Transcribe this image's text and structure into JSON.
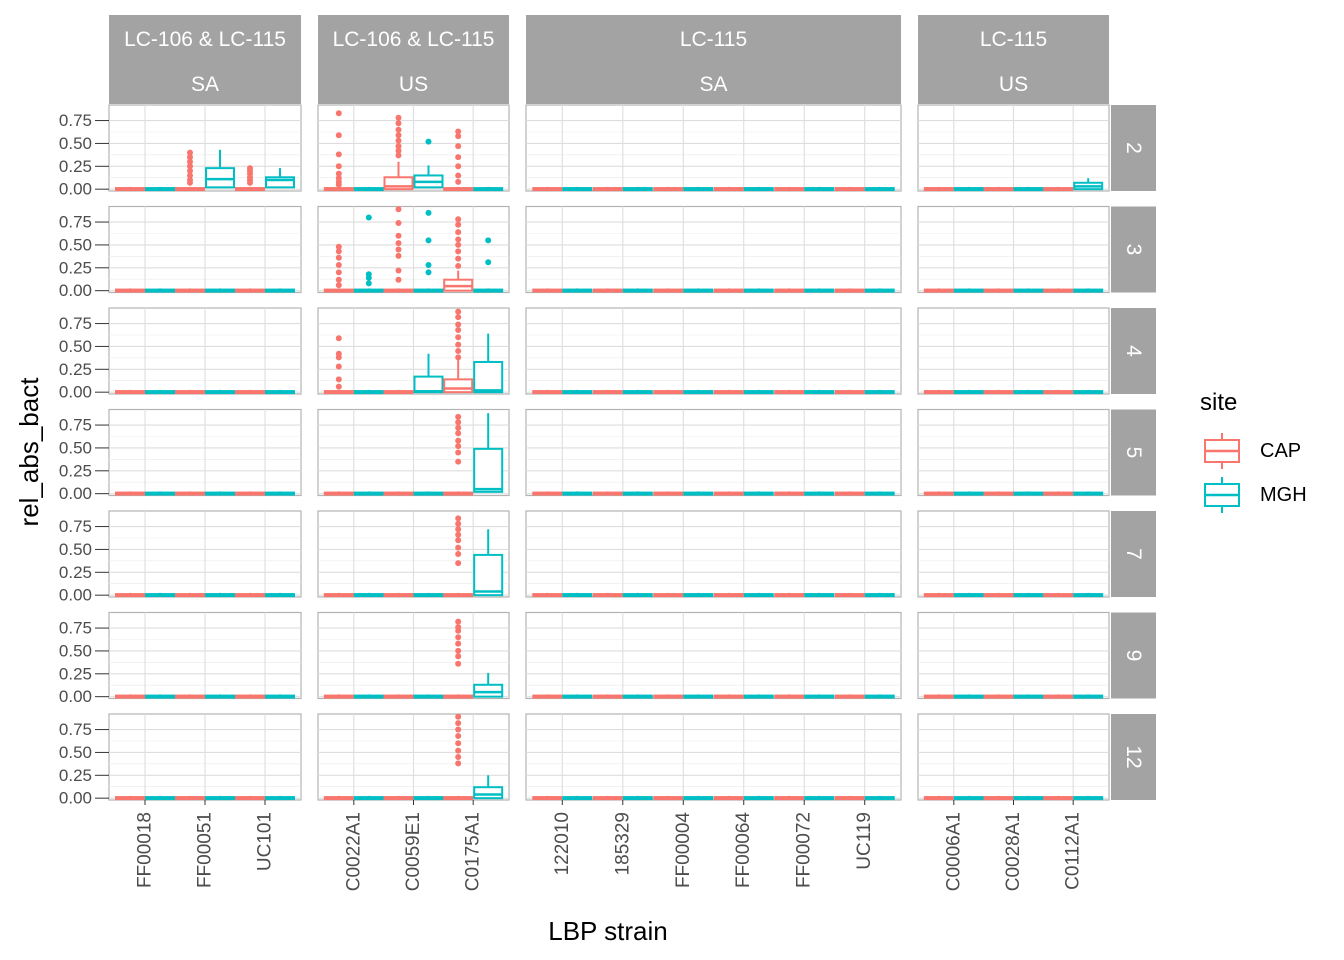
{
  "chart_data": {
    "type": "boxplot",
    "xlabel": "LBP strain",
    "ylabel": "rel_abs_bact",
    "yticks": [
      "0.00",
      "0.25",
      "0.50",
      "0.75"
    ],
    "ylim": [
      -0.02,
      0.92
    ],
    "legend": {
      "title": "site",
      "position": "right",
      "entries": [
        {
          "name": "CAP",
          "color": "#F8766D"
        },
        {
          "name": "MGH",
          "color": "#00BFC4"
        }
      ]
    },
    "column_facets": [
      {
        "label1": "LC-106 & LC-115",
        "label2": "SA",
        "strains": [
          "FF00018",
          "FF00051",
          "UC101"
        ]
      },
      {
        "label1": "LC-106 & LC-115",
        "label2": "US",
        "strains": [
          "C0022A1",
          "C0059E1",
          "C0175A1"
        ]
      },
      {
        "label1": "LC-115",
        "label2": "SA",
        "strains": [
          "122010",
          "185329",
          "FF00004",
          "FF00064",
          "FF00072",
          "UC119"
        ]
      },
      {
        "label1": "LC-115",
        "label2": "US",
        "strains": [
          "C0006A1",
          "C0028A1",
          "C0112A1"
        ]
      }
    ],
    "row_facets": [
      "2",
      "3",
      "4",
      "5",
      "7",
      "9",
      "12"
    ],
    "notable_boxes": [
      {
        "row": "2",
        "facet": 0,
        "strain": "FF00051",
        "site": "MGH",
        "q1": 0.02,
        "median": 0.11,
        "q3": 0.23,
        "whisker_high": 0.43
      },
      {
        "row": "2",
        "facet": 0,
        "strain": "UC101",
        "site": "MGH",
        "q1": 0.02,
        "median": 0.1,
        "q3": 0.13,
        "whisker_high": 0.23
      },
      {
        "row": "2",
        "facet": 1,
        "strain": "C0059E1",
        "site": "CAP",
        "q1": 0.0,
        "median": 0.03,
        "q3": 0.13,
        "whisker_high": 0.3
      },
      {
        "row": "2",
        "facet": 1,
        "strain": "C0059E1",
        "site": "MGH",
        "q1": 0.02,
        "median": 0.08,
        "q3": 0.15,
        "whisker_high": 0.26
      },
      {
        "row": "2",
        "facet": 3,
        "strain": "C0112A1",
        "site": "MGH",
        "q1": 0.0,
        "median": 0.03,
        "q3": 0.07,
        "whisker_high": 0.12
      },
      {
        "row": "3",
        "facet": 1,
        "strain": "C0175A1",
        "site": "CAP",
        "q1": 0.0,
        "median": 0.05,
        "q3": 0.12,
        "whisker_high": 0.22
      },
      {
        "row": "4",
        "facet": 1,
        "strain": "C0059E1",
        "site": "MGH",
        "q1": 0.0,
        "median": 0.01,
        "q3": 0.17,
        "whisker_high": 0.42
      },
      {
        "row": "4",
        "facet": 1,
        "strain": "C0175A1",
        "site": "CAP",
        "q1": 0.0,
        "median": 0.04,
        "q3": 0.14,
        "whisker_high": 0.35
      },
      {
        "row": "4",
        "facet": 1,
        "strain": "C0175A1",
        "site": "MGH",
        "q1": 0.0,
        "median": 0.02,
        "q3": 0.33,
        "whisker_high": 0.64
      },
      {
        "row": "5",
        "facet": 1,
        "strain": "C0175A1",
        "site": "MGH",
        "q1": 0.02,
        "median": 0.05,
        "q3": 0.49,
        "whisker_high": 0.88
      },
      {
        "row": "7",
        "facet": 1,
        "strain": "C0175A1",
        "site": "MGH",
        "q1": 0.0,
        "median": 0.04,
        "q3": 0.44,
        "whisker_high": 0.72
      },
      {
        "row": "9",
        "facet": 1,
        "strain": "C0175A1",
        "site": "MGH",
        "q1": 0.0,
        "median": 0.05,
        "q3": 0.13,
        "whisker_high": 0.26
      },
      {
        "row": "12",
        "facet": 1,
        "strain": "C0175A1",
        "site": "MGH",
        "q1": 0.0,
        "median": 0.04,
        "q3": 0.12,
        "whisker_high": 0.25
      }
    ],
    "outliers": [
      {
        "row": "2",
        "facet": 0,
        "strain": "FF00051",
        "site": "CAP",
        "values": [
          0.4,
          0.35,
          0.3,
          0.25,
          0.2,
          0.15,
          0.1,
          0.07
        ]
      },
      {
        "row": "2",
        "facet": 0,
        "strain": "UC101",
        "site": "CAP",
        "values": [
          0.23,
          0.2,
          0.17,
          0.13,
          0.1,
          0.07
        ]
      },
      {
        "row": "2",
        "facet": 1,
        "strain": "C0022A1",
        "site": "CAP",
        "values": [
          0.83,
          0.59,
          0.38,
          0.25,
          0.17,
          0.12,
          0.08,
          0.05
        ]
      },
      {
        "row": "2",
        "facet": 1,
        "strain": "C0059E1",
        "site": "CAP",
        "values": [
          0.78,
          0.72,
          0.65,
          0.59,
          0.53,
          0.47,
          0.42,
          0.37
        ]
      },
      {
        "row": "2",
        "facet": 1,
        "strain": "C0059E1",
        "site": "MGH",
        "values": [
          0.52
        ]
      },
      {
        "row": "2",
        "facet": 1,
        "strain": "C0175A1",
        "site": "CAP",
        "values": [
          0.63,
          0.58,
          0.47,
          0.35,
          0.25,
          0.15,
          0.08
        ]
      },
      {
        "row": "3",
        "facet": 1,
        "strain": "C0022A1",
        "site": "CAP",
        "values": [
          0.48,
          0.43,
          0.36,
          0.28,
          0.2,
          0.12,
          0.06
        ]
      },
      {
        "row": "3",
        "facet": 1,
        "strain": "C0022A1",
        "site": "MGH",
        "values": [
          0.8,
          0.18,
          0.14,
          0.08
        ]
      },
      {
        "row": "3",
        "facet": 1,
        "strain": "C0059E1",
        "site": "CAP",
        "values": [
          0.89,
          0.74,
          0.6,
          0.52,
          0.45,
          0.38,
          0.22,
          0.12
        ]
      },
      {
        "row": "3",
        "facet": 1,
        "strain": "C0059E1",
        "site": "MGH",
        "values": [
          0.85,
          0.55,
          0.28,
          0.2
        ]
      },
      {
        "row": "3",
        "facet": 1,
        "strain": "C0175A1",
        "site": "CAP",
        "values": [
          0.78,
          0.72,
          0.64,
          0.56,
          0.5,
          0.43,
          0.35,
          0.27
        ]
      },
      {
        "row": "3",
        "facet": 1,
        "strain": "C0175A1",
        "site": "MGH",
        "values": [
          0.55,
          0.31
        ]
      },
      {
        "row": "4",
        "facet": 1,
        "strain": "C0022A1",
        "site": "CAP",
        "values": [
          0.59,
          0.42,
          0.38,
          0.28,
          0.14,
          0.06
        ]
      },
      {
        "row": "4",
        "facet": 1,
        "strain": "C0175A1",
        "site": "CAP",
        "values": [
          0.88,
          0.82,
          0.74,
          0.68,
          0.6,
          0.52,
          0.45,
          0.38
        ]
      },
      {
        "row": "5",
        "facet": 1,
        "strain": "C0175A1",
        "site": "CAP",
        "values": [
          0.84,
          0.78,
          0.72,
          0.66,
          0.58,
          0.52,
          0.45,
          0.35
        ]
      },
      {
        "row": "7",
        "facet": 1,
        "strain": "C0175A1",
        "site": "CAP",
        "values": [
          0.84,
          0.78,
          0.72,
          0.66,
          0.6,
          0.52,
          0.45,
          0.35
        ]
      },
      {
        "row": "9",
        "facet": 1,
        "strain": "C0175A1",
        "site": "CAP",
        "values": [
          0.82,
          0.76,
          0.72,
          0.65,
          0.58,
          0.5,
          0.44,
          0.36
        ]
      },
      {
        "row": "12",
        "facet": 1,
        "strain": "C0175A1",
        "site": "CAP",
        "values": [
          0.89,
          0.82,
          0.75,
          0.68,
          0.6,
          0.52,
          0.45,
          0.38
        ]
      }
    ]
  }
}
